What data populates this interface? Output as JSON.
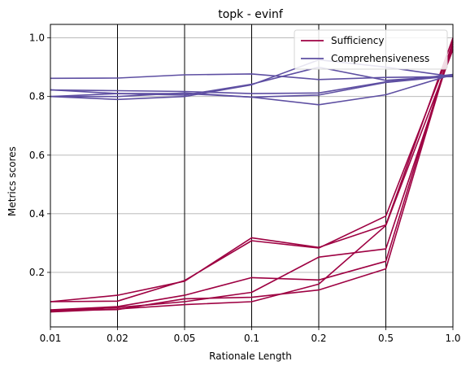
{
  "chart_data": {
    "type": "line",
    "title": "topk - evinf",
    "xlabel": "Rationale Length",
    "ylabel": "Metrics scores",
    "x_categories": [
      "0.01",
      "0.02",
      "0.05",
      "0.1",
      "0.2",
      "0.5",
      "1.0"
    ],
    "ylim": [
      0.014,
      1.046
    ],
    "yticks": [
      "0.2",
      "0.4",
      "0.6",
      "0.8",
      "1.0"
    ],
    "ytick_values": [
      0.2,
      0.4,
      0.6,
      0.8,
      1.0
    ],
    "grid": "horizontal lines at y ticks, vertical lines at x categories",
    "legend_position": "top-right",
    "legend": [
      {
        "label": "Sufficiency",
        "color": "#9e0142"
      },
      {
        "label": "Comprehensiveness",
        "color": "#5e4fa2"
      }
    ],
    "series": [
      {
        "group": "Sufficiency",
        "color": "#9e0142",
        "values": [
          0.1,
          0.122,
          0.17,
          0.318,
          0.285,
          0.362,
          1.0
        ]
      },
      {
        "group": "Sufficiency",
        "color": "#9e0142",
        "values": [
          0.1,
          0.102,
          0.172,
          0.308,
          0.283,
          0.392,
          0.98
        ]
      },
      {
        "group": "Sufficiency",
        "color": "#9e0142",
        "values": [
          0.072,
          0.083,
          0.122,
          0.182,
          0.174,
          0.238,
          0.99
        ]
      },
      {
        "group": "Sufficiency",
        "color": "#9e0142",
        "values": [
          0.068,
          0.08,
          0.1,
          0.132,
          0.252,
          0.28,
          0.97
        ]
      },
      {
        "group": "Sufficiency",
        "color": "#9e0142",
        "values": [
          0.065,
          0.075,
          0.09,
          0.1,
          0.16,
          0.36,
          0.96
        ]
      },
      {
        "group": "Sufficiency",
        "color": "#9e0142",
        "values": [
          0.07,
          0.073,
          0.11,
          0.115,
          0.14,
          0.212,
          0.985
        ]
      },
      {
        "group": "Comprehensiveness",
        "color": "#5e4fa2",
        "values": [
          0.862,
          0.863,
          0.874,
          0.877,
          0.858,
          0.865,
          0.868
        ]
      },
      {
        "group": "Comprehensiveness",
        "color": "#5e4fa2",
        "values": [
          0.8,
          0.79,
          0.8,
          0.84,
          0.925,
          0.9,
          0.868
        ]
      },
      {
        "group": "Comprehensiveness",
        "color": "#5e4fa2",
        "values": [
          0.822,
          0.82,
          0.817,
          0.81,
          0.812,
          0.85,
          0.875
        ]
      },
      {
        "group": "Comprehensiveness",
        "color": "#5e4fa2",
        "values": [
          0.8,
          0.81,
          0.805,
          0.842,
          0.9,
          0.855,
          0.87
        ]
      },
      {
        "group": "Comprehensiveness",
        "color": "#5e4fa2",
        "values": [
          0.8,
          0.8,
          0.812,
          0.798,
          0.772,
          0.806,
          0.875
        ]
      },
      {
        "group": "Comprehensiveness",
        "color": "#5e4fa2",
        "values": [
          0.823,
          0.81,
          0.81,
          0.798,
          0.805,
          0.848,
          0.87
        ]
      }
    ]
  }
}
